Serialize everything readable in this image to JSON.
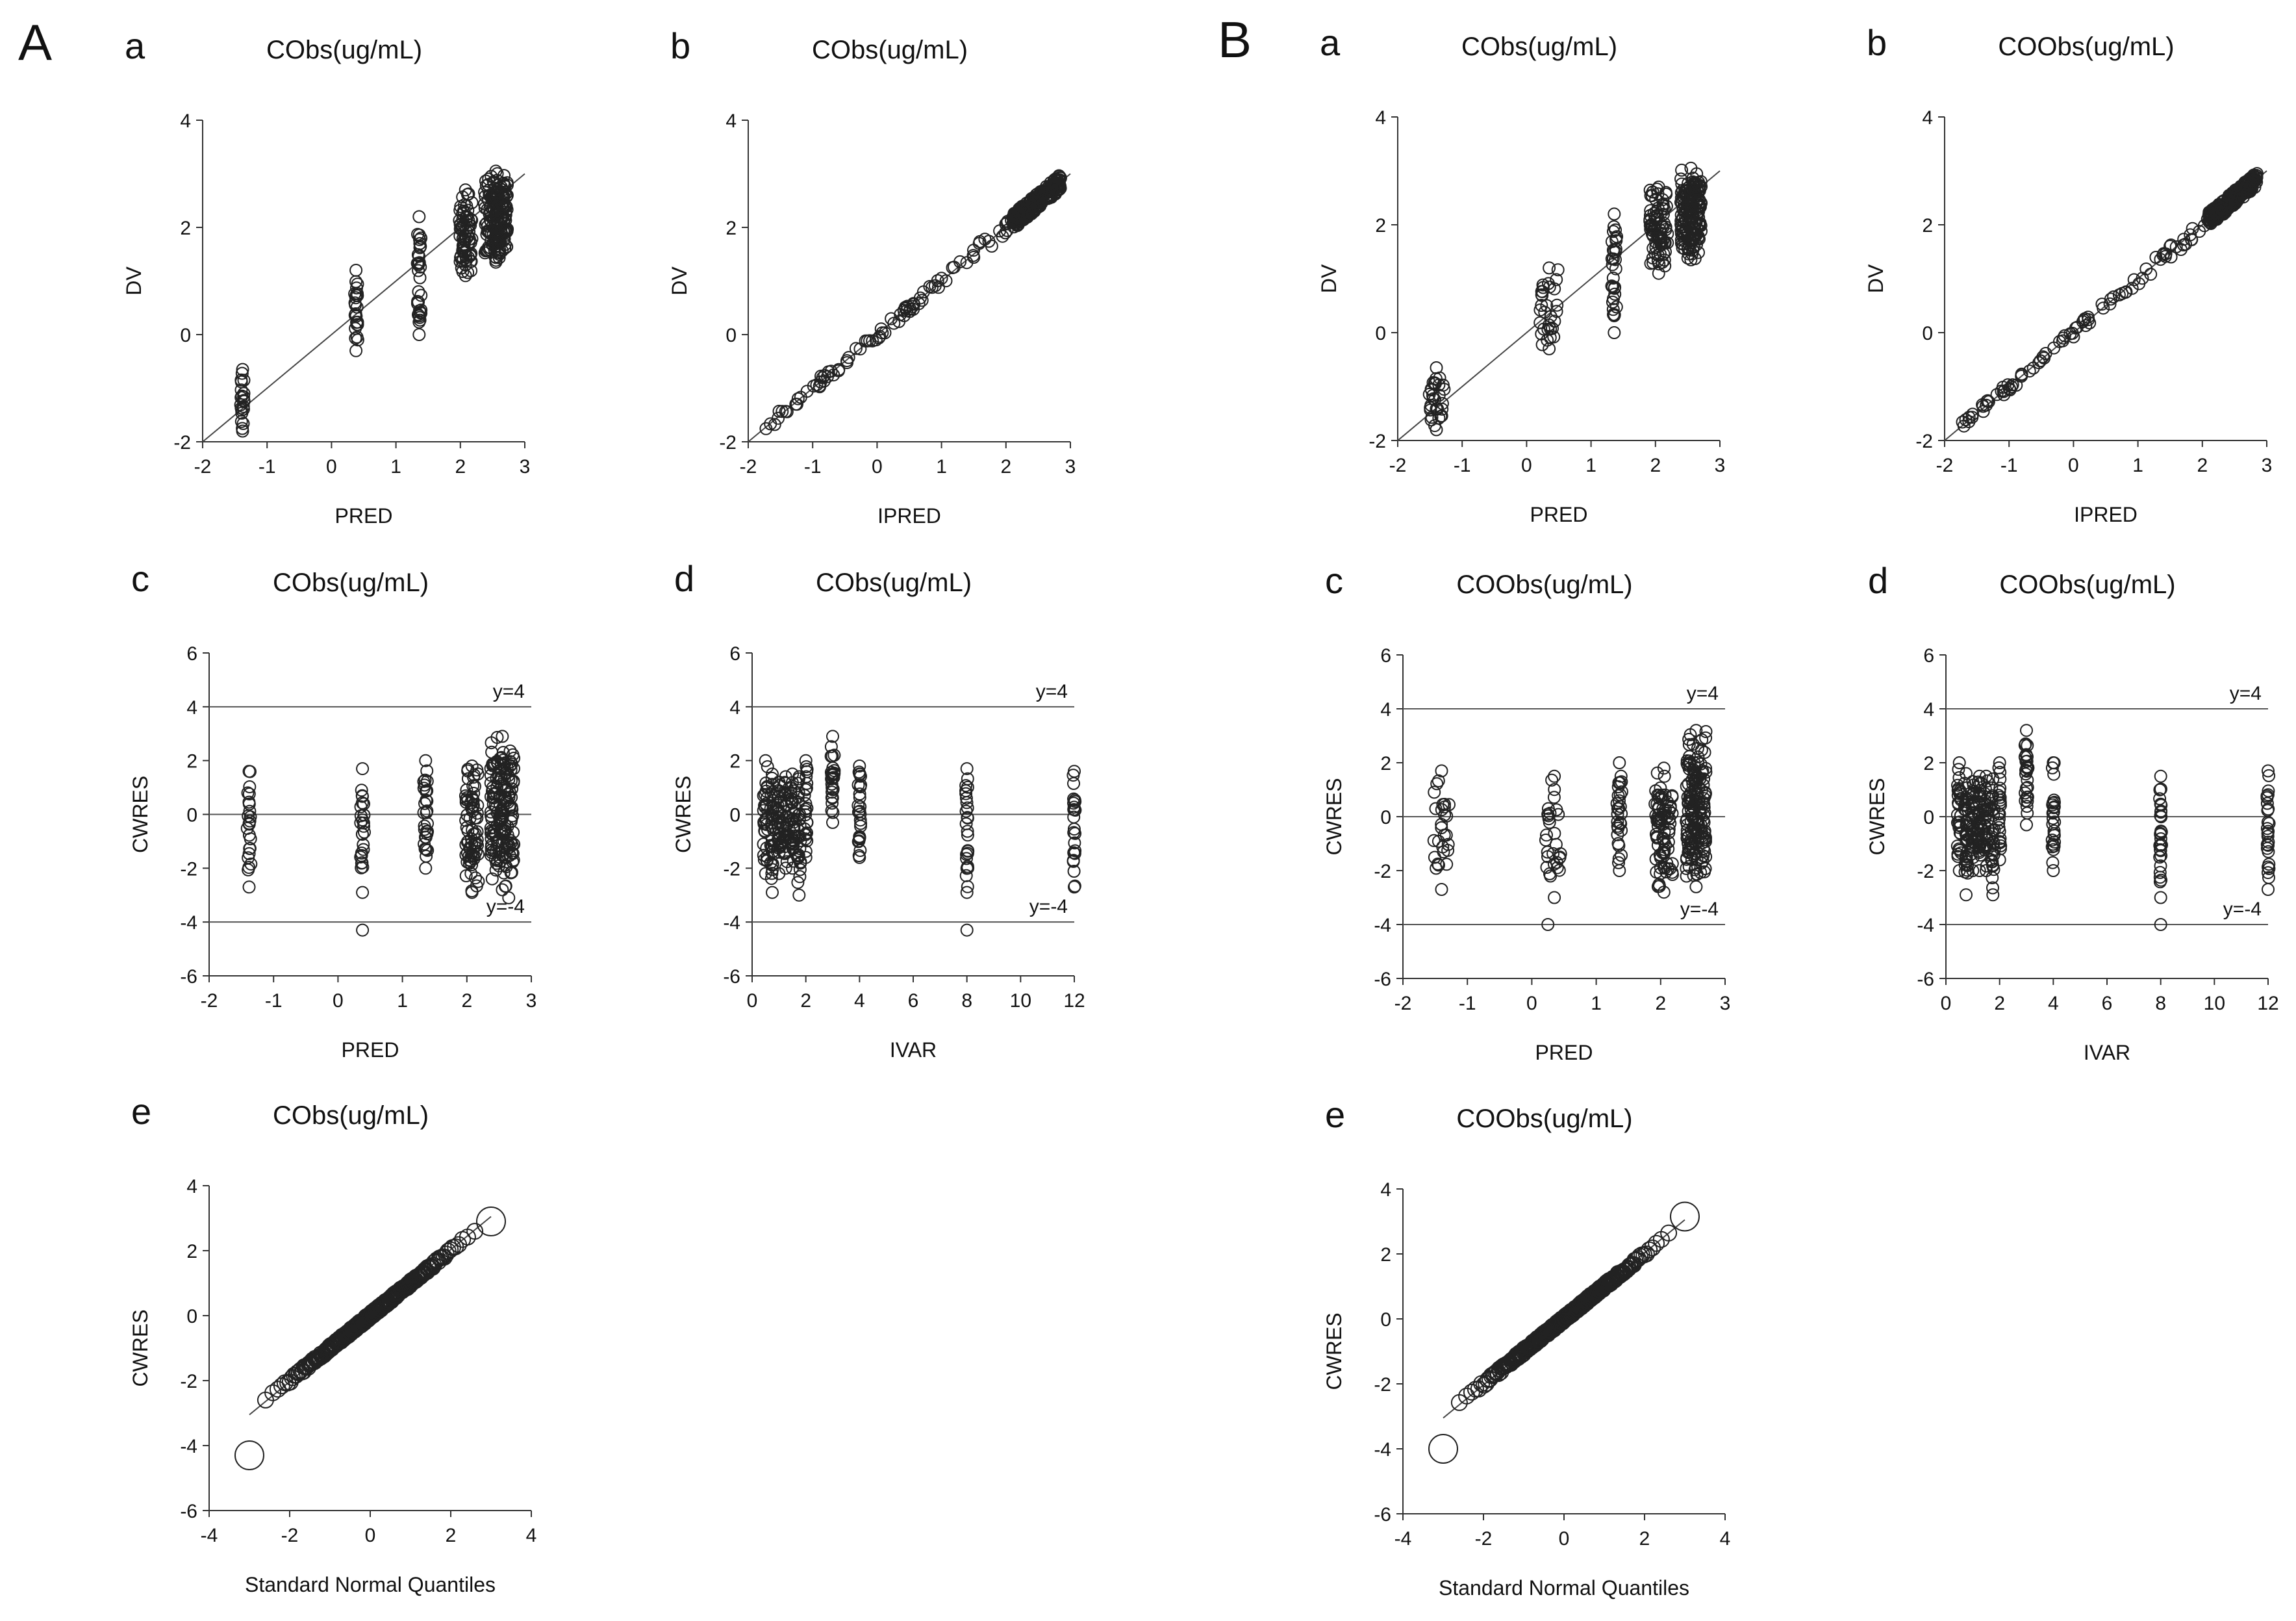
{
  "figure": {
    "sections": [
      {
        "letter": "A",
        "panel_set": "A"
      },
      {
        "letter": "B",
        "panel_set": "B"
      }
    ]
  },
  "chart_data": [
    {
      "id": "A-a",
      "set": "A",
      "letter": "a",
      "type": "scatter",
      "title": "CObs(ug/mL)",
      "xlabel": "PRED",
      "ylabel": "DV",
      "xlim": [
        -2,
        3
      ],
      "ylim": [
        -2,
        4
      ],
      "xticks": [
        -2,
        -1,
        0,
        1,
        2,
        3
      ],
      "yticks": [
        -2,
        0,
        2,
        4
      ],
      "reference_line": {
        "kind": "identity"
      },
      "clusters": [
        {
          "x": -1.38,
          "x_spread": 0.03,
          "y_min": -1.8,
          "y_max": -0.65,
          "n": 20
        },
        {
          "x": 0.38,
          "x_spread": 0.03,
          "y_min": -0.3,
          "y_max": 1.2,
          "n": 22
        },
        {
          "x": 1.36,
          "x_spread": 0.03,
          "y_min": 0.0,
          "y_max": 2.2,
          "n": 30
        },
        {
          "x": 2.08,
          "x_spread": 0.1,
          "y_min": 1.1,
          "y_max": 2.7,
          "n": 70
        },
        {
          "x": 2.55,
          "x_spread": 0.18,
          "y_min": 1.35,
          "y_max": 3.05,
          "n": 170
        }
      ]
    },
    {
      "id": "A-b",
      "set": "A",
      "letter": "b",
      "type": "scatter",
      "title": "CObs(ug/mL)",
      "xlabel": "IPRED",
      "ylabel": "DV",
      "xlim": [
        -2,
        3
      ],
      "ylim": [
        -2,
        4
      ],
      "xticks": [
        -2,
        -1,
        0,
        1,
        2,
        3
      ],
      "yticks": [
        -2,
        0,
        2,
        4
      ],
      "reference_line": {
        "kind": "identity"
      },
      "band": {
        "x_range": [
          -1.75,
          2.85
        ],
        "noise": 0.12,
        "n": 320,
        "dense_above": 2.1
      }
    },
    {
      "id": "A-c",
      "set": "A",
      "letter": "c",
      "type": "scatter",
      "title": "CObs(ug/mL)",
      "xlabel": "PRED",
      "ylabel": "CWRES",
      "xlim": [
        -2,
        3
      ],
      "ylim": [
        -6,
        6
      ],
      "xticks": [
        -2,
        -1,
        0,
        1,
        2,
        3
      ],
      "yticks": [
        -6,
        -4,
        -2,
        0,
        2,
        4,
        6
      ],
      "hlines": [
        {
          "y": 4,
          "label": "y=4"
        },
        {
          "y": 0,
          "label": ""
        },
        {
          "y": -4,
          "label": "y=-4"
        }
      ],
      "clusters": [
        {
          "x": -1.38,
          "x_spread": 0.03,
          "y_min": -2.7,
          "y_max": 1.6,
          "n": 22
        },
        {
          "x": 0.38,
          "x_spread": 0.03,
          "y_min": -2.9,
          "y_max": 1.7,
          "n": 24,
          "extra": [
            [
              0.38,
              -4.3
            ]
          ]
        },
        {
          "x": 1.36,
          "x_spread": 0.03,
          "y_min": -2.0,
          "y_max": 2.0,
          "n": 28
        },
        {
          "x": 2.08,
          "x_spread": 0.1,
          "y_min": -2.9,
          "y_max": 1.8,
          "n": 70
        },
        {
          "x": 2.55,
          "x_spread": 0.18,
          "y_min": -2.8,
          "y_max": 2.9,
          "n": 170,
          "extra": [
            [
              2.65,
              -3.1
            ]
          ]
        }
      ]
    },
    {
      "id": "A-d",
      "set": "A",
      "letter": "d",
      "type": "scatter",
      "title": "CObs(ug/mL)",
      "xlabel": "IVAR",
      "ylabel": "CWRES",
      "xlim": [
        0,
        12
      ],
      "ylim": [
        -6,
        6
      ],
      "xticks": [
        0,
        2,
        4,
        6,
        8,
        10,
        12
      ],
      "yticks": [
        -6,
        -4,
        -2,
        0,
        2,
        4,
        6
      ],
      "hlines": [
        {
          "y": 4,
          "label": "y=4"
        },
        {
          "y": 0,
          "label": ""
        },
        {
          "y": -4,
          "label": "y=-4"
        }
      ],
      "clusters": [
        {
          "x": 0.5,
          "x_spread": 0.08,
          "y_min": -2.2,
          "y_max": 2.0,
          "n": 30
        },
        {
          "x": 0.75,
          "x_spread": 0.06,
          "y_min": -2.9,
          "y_max": 1.5,
          "n": 30
        },
        {
          "x": 1.0,
          "x_spread": 0.06,
          "y_min": -2.2,
          "y_max": 1.2,
          "n": 30
        },
        {
          "x": 1.25,
          "x_spread": 0.06,
          "y_min": -2.0,
          "y_max": 1.4,
          "n": 30
        },
        {
          "x": 1.5,
          "x_spread": 0.06,
          "y_min": -2.0,
          "y_max": 1.5,
          "n": 30
        },
        {
          "x": 1.75,
          "x_spread": 0.06,
          "y_min": -3.0,
          "y_max": 1.4,
          "n": 25
        },
        {
          "x": 2.0,
          "x_spread": 0.05,
          "y_min": -1.6,
          "y_max": 2.0,
          "n": 22
        },
        {
          "x": 3.0,
          "x_spread": 0.06,
          "y_min": -0.3,
          "y_max": 2.9,
          "n": 25
        },
        {
          "x": 4.0,
          "x_spread": 0.05,
          "y_min": -1.6,
          "y_max": 1.8,
          "n": 24
        },
        {
          "x": 8.0,
          "x_spread": 0.04,
          "y_min": -2.9,
          "y_max": 1.7,
          "n": 24,
          "extra": [
            [
              8.0,
              -4.3
            ]
          ]
        },
        {
          "x": 12.0,
          "x_spread": 0.04,
          "y_min": -2.7,
          "y_max": 1.6,
          "n": 22
        }
      ]
    },
    {
      "id": "A-e",
      "set": "A",
      "letter": "e",
      "type": "scatter",
      "title": "CObs(ug/mL)",
      "xlabel": "Standard Normal Quantiles",
      "ylabel": "CWRES",
      "xlim": [
        -4,
        4
      ],
      "ylim": [
        -6,
        4
      ],
      "xticks": [
        -4,
        -2,
        0,
        2,
        4
      ],
      "yticks": [
        -6,
        -4,
        -2,
        0,
        2,
        4
      ],
      "reference_line": {
        "kind": "segment",
        "from": [
          -3.0,
          -3.05
        ],
        "to": [
          3.0,
          3.05
        ]
      },
      "qq": {
        "n": 320,
        "min_point": [
          -3.0,
          -4.3
        ],
        "max_point": [
          3.0,
          2.9
        ]
      }
    },
    {
      "id": "B-a",
      "set": "B",
      "letter": "a",
      "type": "scatter",
      "title": "CObs(ug/mL)",
      "xlabel": "PRED",
      "ylabel": "DV",
      "xlim": [
        -2,
        3
      ],
      "ylim": [
        -2,
        4
      ],
      "xticks": [
        -2,
        -1,
        0,
        1,
        2,
        3
      ],
      "yticks": [
        -2,
        0,
        2,
        4
      ],
      "reference_line": {
        "kind": "identity"
      },
      "clusters": [
        {
          "x": -1.4,
          "x_spread": 0.12,
          "y_min": -1.8,
          "y_max": -0.65,
          "n": 28
        },
        {
          "x": 0.35,
          "x_spread": 0.14,
          "y_min": -0.3,
          "y_max": 1.2,
          "n": 30
        },
        {
          "x": 1.36,
          "x_spread": 0.04,
          "y_min": 0.0,
          "y_max": 2.2,
          "n": 30
        },
        {
          "x": 2.05,
          "x_spread": 0.14,
          "y_min": 1.1,
          "y_max": 2.7,
          "n": 80
        },
        {
          "x": 2.55,
          "x_spread": 0.16,
          "y_min": 1.35,
          "y_max": 3.05,
          "n": 170
        }
      ]
    },
    {
      "id": "B-b",
      "set": "B",
      "letter": "b",
      "type": "scatter",
      "title": "COObs(ug/mL)",
      "xlabel": "IPRED",
      "ylabel": "DV",
      "xlim": [
        -2,
        3
      ],
      "ylim": [
        -2,
        4
      ],
      "xticks": [
        -2,
        -1,
        0,
        1,
        2,
        3
      ],
      "yticks": [
        -2,
        0,
        2,
        4
      ],
      "reference_line": {
        "kind": "identity"
      },
      "band": {
        "x_range": [
          -1.75,
          2.85
        ],
        "noise": 0.11,
        "n": 320,
        "dense_above": 2.1
      }
    },
    {
      "id": "B-c",
      "set": "B",
      "letter": "c",
      "type": "scatter",
      "title": "COObs(ug/mL)",
      "xlabel": "PRED",
      "ylabel": "CWRES",
      "xlim": [
        -2,
        3
      ],
      "ylim": [
        -6,
        6
      ],
      "xticks": [
        -2,
        -1,
        0,
        1,
        2,
        3
      ],
      "yticks": [
        -6,
        -4,
        -2,
        0,
        2,
        4,
        6
      ],
      "hlines": [
        {
          "y": 4,
          "label": "y=4"
        },
        {
          "y": 0,
          "label": ""
        },
        {
          "y": -4,
          "label": "y=-4"
        }
      ],
      "clusters": [
        {
          "x": -1.4,
          "x_spread": 0.12,
          "y_min": -2.7,
          "y_max": 1.7,
          "n": 26
        },
        {
          "x": 0.35,
          "x_spread": 0.14,
          "y_min": -3.0,
          "y_max": 1.5,
          "n": 28,
          "extra": [
            [
              0.25,
              -4.0
            ]
          ]
        },
        {
          "x": 1.36,
          "x_spread": 0.04,
          "y_min": -2.0,
          "y_max": 2.0,
          "n": 28
        },
        {
          "x": 2.05,
          "x_spread": 0.14,
          "y_min": -2.8,
          "y_max": 1.8,
          "n": 80
        },
        {
          "x": 2.55,
          "x_spread": 0.16,
          "y_min": -2.6,
          "y_max": 3.2,
          "n": 170
        }
      ]
    },
    {
      "id": "B-d",
      "set": "B",
      "letter": "d",
      "type": "scatter",
      "title": "COObs(ug/mL)",
      "xlabel": "IVAR",
      "ylabel": "CWRES",
      "xlim": [
        0,
        12
      ],
      "ylim": [
        -6,
        6
      ],
      "xticks": [
        0,
        2,
        4,
        6,
        8,
        10,
        12
      ],
      "yticks": [
        -6,
        -4,
        -2,
        0,
        2,
        4,
        6
      ],
      "hlines": [
        {
          "y": 4,
          "label": "y=4"
        },
        {
          "y": 0,
          "label": ""
        },
        {
          "y": -4,
          "label": "y=-4"
        }
      ],
      "clusters": [
        {
          "x": 0.5,
          "x_spread": 0.08,
          "y_min": -2.0,
          "y_max": 2.0,
          "n": 30
        },
        {
          "x": 0.75,
          "x_spread": 0.06,
          "y_min": -2.9,
          "y_max": 1.6,
          "n": 30
        },
        {
          "x": 1.0,
          "x_spread": 0.06,
          "y_min": -2.0,
          "y_max": 1.3,
          "n": 30
        },
        {
          "x": 1.25,
          "x_spread": 0.06,
          "y_min": -2.0,
          "y_max": 1.5,
          "n": 30
        },
        {
          "x": 1.5,
          "x_spread": 0.06,
          "y_min": -2.0,
          "y_max": 1.5,
          "n": 30
        },
        {
          "x": 1.75,
          "x_spread": 0.06,
          "y_min": -2.9,
          "y_max": 1.4,
          "n": 25
        },
        {
          "x": 2.0,
          "x_spread": 0.05,
          "y_min": -1.6,
          "y_max": 2.0,
          "n": 22
        },
        {
          "x": 3.0,
          "x_spread": 0.06,
          "y_min": -0.3,
          "y_max": 3.2,
          "n": 25
        },
        {
          "x": 4.0,
          "x_spread": 0.05,
          "y_min": -2.0,
          "y_max": 2.0,
          "n": 24
        },
        {
          "x": 8.0,
          "x_spread": 0.04,
          "y_min": -3.0,
          "y_max": 1.5,
          "n": 26,
          "extra": [
            [
              8.0,
              -4.0
            ]
          ]
        },
        {
          "x": 12.0,
          "x_spread": 0.04,
          "y_min": -2.7,
          "y_max": 1.7,
          "n": 24
        }
      ]
    },
    {
      "id": "B-e",
      "set": "B",
      "letter": "e",
      "type": "scatter",
      "title": "COObs(ug/mL)",
      "xlabel": "Standard Normal Quantiles",
      "ylabel": "CWRES",
      "xlim": [
        -4,
        4
      ],
      "ylim": [
        -6,
        4
      ],
      "xticks": [
        -4,
        -2,
        0,
        2,
        4
      ],
      "yticks": [
        -6,
        -4,
        -2,
        0,
        2,
        4
      ],
      "reference_line": {
        "kind": "segment",
        "from": [
          -3.0,
          -3.05
        ],
        "to": [
          3.0,
          3.05
        ]
      },
      "qq": {
        "n": 320,
        "min_point": [
          -3.0,
          -4.0
        ],
        "max_point": [
          3.0,
          3.15
        ]
      }
    }
  ]
}
